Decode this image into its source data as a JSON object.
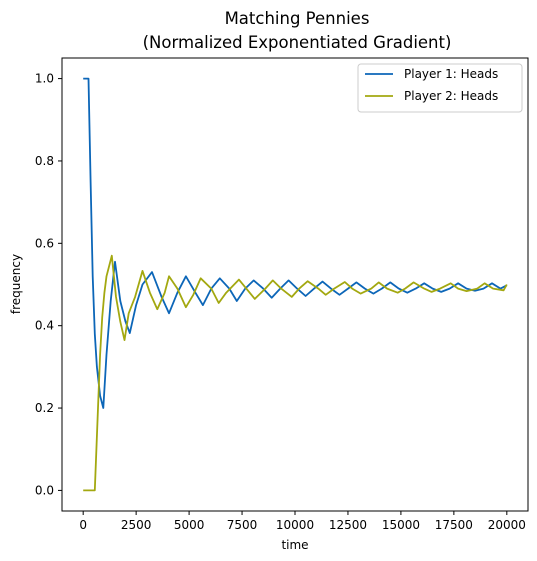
{
  "chart_data": {
    "type": "line",
    "title_lines": [
      "Matching Pennies",
      "(Normalized Exponentiated Gradient)"
    ],
    "xlabel": "time",
    "ylabel": "frequency",
    "xlim": [
      -1000,
      21000
    ],
    "ylim": [
      -0.05,
      1.05
    ],
    "xticks": [
      0,
      2500,
      5000,
      7500,
      10000,
      12500,
      15000,
      17500,
      20000
    ],
    "xtick_labels": [
      "0",
      "2500",
      "5000",
      "7500",
      "10000",
      "12500",
      "15000",
      "17500",
      "20000"
    ],
    "yticks": [
      0.0,
      0.2,
      0.4,
      0.6,
      0.8,
      1.0
    ],
    "ytick_labels": [
      "0.0",
      "0.2",
      "0.4",
      "0.6",
      "0.8",
      "1.0"
    ],
    "grid": false,
    "legend_position": "top-right",
    "series": [
      {
        "name": "Player 1: Heads",
        "color": "#0c66b8",
        "x": [
          0,
          250,
          350,
          450,
          550,
          650,
          800,
          950,
          1100,
          1300,
          1500,
          1750,
          2000,
          2200,
          2500,
          2800,
          3250,
          3700,
          4050,
          4450,
          4850,
          5300,
          5650,
          6050,
          6450,
          6900,
          7250,
          7650,
          8050,
          8500,
          8900,
          9300,
          9700,
          10100,
          10500,
          10900,
          11300,
          11700,
          12100,
          12500,
          12900,
          13300,
          13700,
          14100,
          14500,
          14900,
          15300,
          15700,
          16100,
          16500,
          16900,
          17300,
          17700,
          18100,
          18500,
          18900,
          19300,
          19700,
          20000
        ],
        "y": [
          1.0,
          1.0,
          0.75,
          0.52,
          0.38,
          0.3,
          0.23,
          0.2,
          0.33,
          0.46,
          0.555,
          0.46,
          0.41,
          0.382,
          0.45,
          0.5,
          0.53,
          0.47,
          0.43,
          0.48,
          0.52,
          0.48,
          0.45,
          0.49,
          0.515,
          0.49,
          0.46,
          0.49,
          0.51,
          0.49,
          0.468,
          0.49,
          0.51,
          0.49,
          0.472,
          0.49,
          0.507,
          0.49,
          0.475,
          0.49,
          0.505,
          0.49,
          0.478,
          0.49,
          0.505,
          0.49,
          0.48,
          0.49,
          0.503,
          0.49,
          0.482,
          0.49,
          0.503,
          0.49,
          0.485,
          0.49,
          0.503,
          0.49,
          0.498
        ]
      },
      {
        "name": "Player 2: Heads",
        "color": "#a3a810",
        "x": [
          0,
          550,
          700,
          800,
          900,
          1000,
          1100,
          1350,
          1550,
          1750,
          1950,
          2150,
          2450,
          2800,
          3150,
          3500,
          3850,
          4050,
          4450,
          4850,
          5200,
          5550,
          6050,
          6400,
          6750,
          7350,
          7700,
          8100,
          8600,
          8950,
          9350,
          9850,
          10200,
          10600,
          11100,
          11450,
          11850,
          12350,
          12700,
          13100,
          13600,
          13950,
          14350,
          14850,
          15200,
          15600,
          16100,
          16450,
          16850,
          17350,
          17700,
          18100,
          18600,
          18950,
          19350,
          19850,
          20000
        ],
        "y": [
          0.0,
          0.0,
          0.2,
          0.33,
          0.42,
          0.48,
          0.52,
          0.57,
          0.47,
          0.41,
          0.365,
          0.43,
          0.47,
          0.533,
          0.48,
          0.44,
          0.48,
          0.52,
          0.49,
          0.445,
          0.475,
          0.515,
          0.49,
          0.455,
          0.48,
          0.512,
          0.49,
          0.465,
          0.49,
          0.51,
          0.49,
          0.47,
          0.49,
          0.508,
          0.49,
          0.475,
          0.49,
          0.506,
          0.49,
          0.478,
          0.49,
          0.505,
          0.49,
          0.48,
          0.49,
          0.505,
          0.49,
          0.482,
          0.49,
          0.503,
          0.49,
          0.484,
          0.49,
          0.503,
          0.49,
          0.486,
          0.5
        ]
      }
    ]
  }
}
